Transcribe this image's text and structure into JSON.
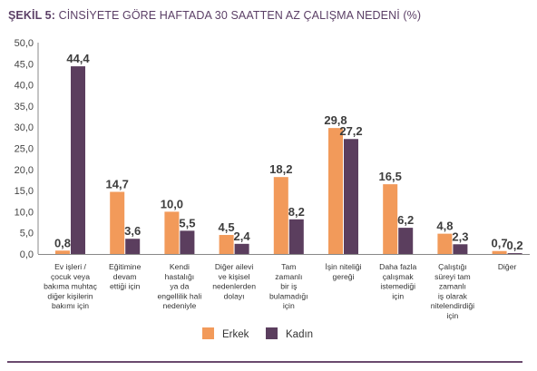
{
  "title": {
    "label": "ŞEKİL 5:",
    "text": "CİNSİYETE GÖRE HAFTADA 30 SAATTEN AZ ÇALIŞMA NEDENİ (%)"
  },
  "chart_data": {
    "type": "bar",
    "title": "ŞEKİL 5: CİNSİYETE GÖRE HAFTADA 30 SAATTEN AZ ÇALIŞMA NEDENİ (%)",
    "ylim": [
      0,
      50
    ],
    "yticks": [
      "0,0",
      "5,0",
      "10,0",
      "15,0",
      "20,0",
      "25,0",
      "30,0",
      "35,0",
      "40,0",
      "45,0",
      "50,0"
    ],
    "grid": false,
    "legend_position": "bottom-center",
    "categories": [
      [
        "Ev işleri /",
        "çocuk veya",
        "bakıma muhtaç",
        "diğer kişilerin",
        "bakımı için"
      ],
      [
        "Eğitimine",
        "devam",
        "ettiği için"
      ],
      [
        "Kendi",
        "hastalığı",
        "ya da",
        "engellilik hali",
        "nedeniyle"
      ],
      [
        "Diğer ailevi",
        "ve kişisel",
        "nedenlerden",
        "dolayı"
      ],
      [
        "Tam",
        "zamanlı",
        "bir iş",
        "bulamadığı",
        "için"
      ],
      [
        "İşin niteliği",
        "gereği"
      ],
      [
        "Daha fazla",
        "çalışmak",
        "istemediği",
        "için"
      ],
      [
        "Çalıştığı",
        "süreyi tam",
        "zamanlı",
        "iş olarak",
        "nitelendirdiği",
        "için"
      ],
      [
        "Diğer"
      ]
    ],
    "series": [
      {
        "name": "Erkek",
        "color": "#f29a5a",
        "values": [
          0.8,
          14.7,
          10.0,
          4.5,
          18.2,
          29.8,
          16.5,
          4.8,
          0.7
        ],
        "labels": [
          "0,8",
          "14,7",
          "10,0",
          "4,5",
          "18,2",
          "29,8",
          "16,5",
          "4,8",
          "0,7"
        ]
      },
      {
        "name": "Kadın",
        "color": "#5b3e5e",
        "values": [
          44.4,
          3.6,
          5.5,
          2.4,
          8.2,
          27.2,
          6.2,
          2.3,
          0.2
        ],
        "labels": [
          "44,4",
          "3,6",
          "5,5",
          "2,4",
          "8,2",
          "27,2",
          "6,2",
          "2,3",
          "0,2"
        ]
      }
    ]
  }
}
